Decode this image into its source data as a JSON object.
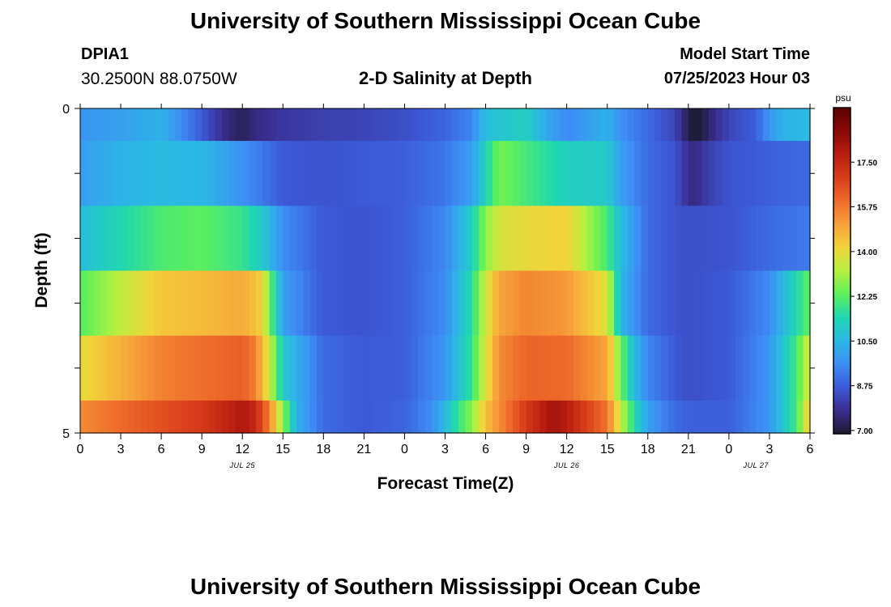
{
  "header": {
    "title": "University of Southern Mississippi Ocean Cube",
    "station": "DPIA1",
    "coords": "30.2500N  88.0750W",
    "subtitle": "2-D Salinity at Depth",
    "model_start_label": "Model Start Time",
    "model_start_value": "07/25/2023 Hour 03"
  },
  "footer": {
    "title": "University of Southern Mississippi Ocean Cube"
  },
  "chart_data": {
    "type": "heatmap",
    "title": "2-D Salinity at Depth",
    "xlabel": "Forecast Time(Z)",
    "ylabel": "Depth (ft)",
    "ylim": [
      0,
      5
    ],
    "x_hours": [
      0,
      54
    ],
    "x_tick_labels": [
      "0",
      "3",
      "6",
      "9",
      "12",
      "15",
      "18",
      "21",
      "0",
      "3",
      "6",
      "9",
      "12",
      "15",
      "18",
      "21",
      "0",
      "3",
      "6"
    ],
    "date_labels": [
      {
        "label": "JUL 25",
        "hour": 12
      },
      {
        "label": "JUL 26",
        "hour": 36
      },
      {
        "label": "JUL 27",
        "hour": 50
      }
    ],
    "y_tick_labels": [
      {
        "label": "0",
        "depth": 0
      },
      {
        "label": "5",
        "depth": 5
      }
    ],
    "colorbar": {
      "unit": "psu",
      "min": 6.9,
      "max": 19.6,
      "ticks": [
        "7.00",
        "8.75",
        "10.50",
        "12.25",
        "14.00",
        "15.75",
        "17.50"
      ],
      "colors": [
        "#1a1a2e",
        "#3b2d8f",
        "#3c5ad8",
        "#3d8ef5",
        "#2bb8e5",
        "#1fd7b0",
        "#5ef05a",
        "#b6f040",
        "#f2d43a",
        "#f7a13a",
        "#ee6a2a",
        "#d83d1a",
        "#b81d10",
        "#8a0a06",
        "#5a0202"
      ]
    },
    "depth_bands": [
      {
        "label": "0.0-0.5 ft",
        "times": [
          0,
          3,
          6,
          8,
          10,
          11,
          12,
          13,
          15,
          18,
          21,
          24,
          27,
          29,
          30,
          33,
          34,
          36,
          39,
          40,
          42,
          44,
          45,
          45.5,
          46,
          47,
          48,
          50,
          51,
          52,
          54
        ],
        "values": [
          9.8,
          10.0,
          10.4,
          9.3,
          8.1,
          7.6,
          7.3,
          7.7,
          8.0,
          8.2,
          8.3,
          8.5,
          8.9,
          9.5,
          10.7,
          11.2,
          10.5,
          9.5,
          10.4,
          9.7,
          9.0,
          8.3,
          7.2,
          6.9,
          7.1,
          7.8,
          8.3,
          8.8,
          9.8,
          10.4,
          10.6
        ]
      },
      {
        "label": "0.5-1.5 ft",
        "times": [
          0,
          3,
          6,
          9,
          11,
          13,
          15,
          18,
          21,
          24,
          27,
          29,
          30,
          31,
          33,
          36,
          39,
          40,
          42,
          44,
          45,
          45.5,
          46,
          48,
          51,
          54
        ],
        "values": [
          10.0,
          10.4,
          10.6,
          10.5,
          10.0,
          9.4,
          8.7,
          8.6,
          8.7,
          8.8,
          9.2,
          10.0,
          11.3,
          12.6,
          12.0,
          11.2,
          11.0,
          10.0,
          9.0,
          8.6,
          7.8,
          7.6,
          8.0,
          8.6,
          8.8,
          9.0
        ]
      },
      {
        "label": "1.5-2.5 ft",
        "times": [
          0,
          3,
          6,
          9,
          12,
          13.5,
          15,
          18,
          21,
          24,
          27,
          29,
          30,
          31,
          33,
          36,
          39,
          40,
          42,
          44,
          45,
          48,
          51,
          54
        ],
        "values": [
          10.7,
          11.4,
          12.1,
          12.3,
          11.8,
          11.0,
          9.6,
          8.7,
          8.6,
          8.8,
          9.5,
          11.2,
          12.8,
          13.7,
          14.0,
          14.2,
          12.0,
          10.7,
          9.0,
          8.6,
          8.5,
          8.6,
          9.0,
          9.3
        ]
      },
      {
        "label": "2.5-3.5 ft",
        "times": [
          0,
          3,
          6,
          9,
          12,
          13.5,
          14,
          15,
          18,
          21,
          24,
          27,
          29,
          30,
          31,
          33,
          36,
          39,
          40,
          42,
          44,
          45,
          48,
          51,
          54
        ],
        "values": [
          12.2,
          13.4,
          14.4,
          14.6,
          14.9,
          14.2,
          12.5,
          10.0,
          8.7,
          8.6,
          8.8,
          9.6,
          11.6,
          13.6,
          15.0,
          15.5,
          15.2,
          13.8,
          10.5,
          9.0,
          8.6,
          8.5,
          8.7,
          9.6,
          12.4
        ]
      },
      {
        "label": "3.5-4.5 ft",
        "times": [
          0,
          3,
          6,
          9,
          12,
          13,
          14,
          15,
          18,
          21,
          24,
          27,
          29,
          30,
          31,
          33,
          36,
          39,
          40,
          41,
          42,
          44,
          45,
          48,
          51,
          53,
          54
        ],
        "values": [
          14.0,
          14.8,
          15.6,
          15.9,
          16.2,
          15.6,
          13.6,
          11.0,
          9.0,
          8.7,
          8.8,
          9.8,
          11.8,
          13.8,
          15.4,
          16.1,
          16.0,
          15.0,
          12.5,
          10.6,
          9.5,
          8.7,
          8.5,
          8.7,
          9.8,
          12.0,
          13.8
        ]
      },
      {
        "label": "4.5-5.0 ft",
        "times": [
          0,
          3,
          6,
          9,
          11,
          12,
          13,
          14,
          15,
          16,
          18,
          21,
          24,
          26,
          27,
          28,
          29,
          30,
          33,
          35,
          36,
          39,
          40,
          41,
          42,
          44,
          45,
          48,
          51,
          53,
          54
        ],
        "values": [
          15.4,
          16.0,
          16.5,
          17.0,
          17.6,
          18.0,
          17.4,
          15.6,
          12.8,
          10.4,
          9.0,
          8.7,
          8.9,
          9.6,
          10.6,
          11.8,
          12.8,
          14.5,
          17.0,
          18.2,
          17.8,
          15.8,
          13.5,
          11.5,
          10.0,
          9.0,
          8.8,
          8.8,
          9.8,
          12.0,
          14.5
        ]
      }
    ]
  }
}
